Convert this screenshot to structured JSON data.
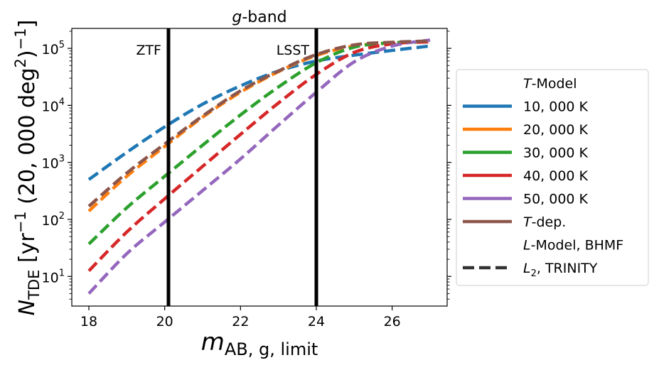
{
  "chart_data": {
    "type": "line",
    "title_italic": "g",
    "title_rest": "-band",
    "xlabel": {
      "main": "m",
      "sub": "AB, g, limit"
    },
    "ylabel": {
      "main": "N",
      "sub": "TDE",
      "rest": " [yr",
      "sup1": "−1",
      "mid": " (20, 000 deg",
      "sup2": "2",
      "end": ")",
      "sup3": "−1",
      "close": "]"
    },
    "xlim": [
      17.55,
      27.45
    ],
    "ylim_log10": [
      0.48,
      5.35
    ],
    "yscale": "log",
    "x_ticks": [
      18,
      20,
      22,
      24,
      26
    ],
    "x_tick_labels": [
      "18",
      "20",
      "22",
      "24",
      "26"
    ],
    "y_ticks_log10": [
      1,
      2,
      3,
      4,
      5
    ],
    "y_tick_labels": [
      {
        "base": "10",
        "exp": "1"
      },
      {
        "base": "10",
        "exp": "2"
      },
      {
        "base": "10",
        "exp": "3"
      },
      {
        "base": "10",
        "exp": "4"
      },
      {
        "base": "10",
        "exp": "5"
      }
    ],
    "vlines": [
      {
        "x": 20.1,
        "label": "ZTF"
      },
      {
        "x": 24.0,
        "label": "LSST"
      }
    ],
    "x": [
      18,
      19,
      20,
      21,
      22,
      23,
      24,
      25,
      26,
      27
    ],
    "series": [
      {
        "name": "10, 000 K",
        "color": "#1f77b4",
        "linestyle": "dashed",
        "values": [
          500,
          1500,
          4200,
          10500,
          22000,
          40000,
          60000,
          76000,
          92000,
          110000
        ]
      },
      {
        "name": "20, 000 K",
        "color": "#ff7f0e",
        "linestyle": "dashed",
        "values": [
          140,
          570,
          1900,
          6200,
          17000,
          39000,
          75000,
          110000,
          125000,
          130000
        ]
      },
      {
        "name": "30, 000 K",
        "color": "#2ca02c",
        "linestyle": "dashed",
        "values": [
          37,
          160,
          570,
          2000,
          6800,
          21000,
          56000,
          105000,
          125000,
          130000
        ]
      },
      {
        "name": "40, 000 K",
        "color": "#d62728",
        "linestyle": "dashed",
        "values": [
          12.5,
          60,
          230,
          850,
          3100,
          11000,
          35000,
          85000,
          120000,
          130000
        ]
      },
      {
        "name": "50, 000 K",
        "color": "#9467bd",
        "linestyle": "dashed",
        "values": [
          5,
          25,
          90,
          320,
          1150,
          4500,
          17000,
          58000,
          110000,
          140000
        ]
      },
      {
        "name": "T-dep.",
        "color": "#8c564b",
        "linestyle": "dashed",
        "values": [
          170,
          650,
          2100,
          6500,
          18000,
          40000,
          78000,
          115000,
          128000,
          135000
        ]
      }
    ],
    "legend": {
      "position": "center-right",
      "header1": {
        "italic": "T",
        "rest": "-Model"
      },
      "entries": [
        {
          "label": "10, 000 K",
          "color": "#1f77b4",
          "style": "solid"
        },
        {
          "label": "20, 000 K",
          "color": "#ff7f0e",
          "style": "solid"
        },
        {
          "label": "30, 000 K",
          "color": "#2ca02c",
          "style": "solid"
        },
        {
          "label": "40, 000 K",
          "color": "#d62728",
          "style": "solid"
        },
        {
          "label": "50, 000 K",
          "color": "#9467bd",
          "style": "solid"
        },
        {
          "label_italic": "T",
          "label_rest": "-dep.",
          "color": "#8c564b",
          "style": "solid"
        }
      ],
      "header2": {
        "italic": "L",
        "rest": "-Model, BHMF"
      },
      "style_entry": {
        "italic": "L",
        "sub": "2",
        "rest": ", TRINITY",
        "color": "#333333",
        "style": "dashed"
      }
    }
  }
}
